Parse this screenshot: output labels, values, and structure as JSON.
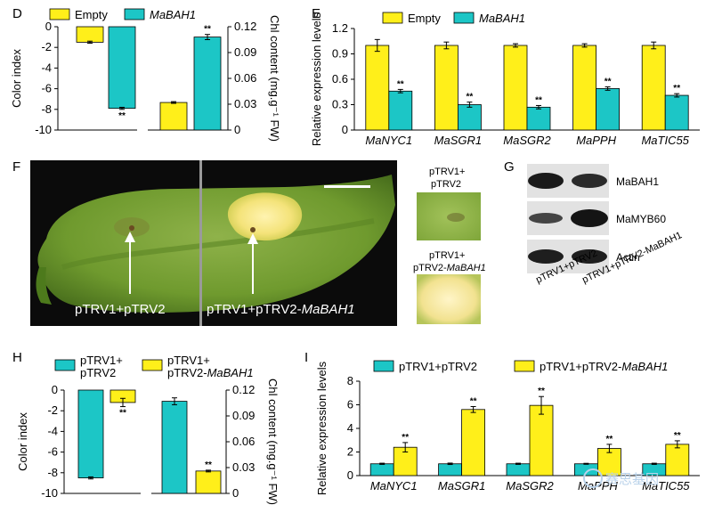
{
  "colors": {
    "empty": "#ffef1a",
    "treatment": "#1cc6c6",
    "ctrl_trv": "#1cc6c6",
    "trv_bah1": "#ffef1a"
  },
  "panel_labels": {
    "d": "D",
    "e": "E",
    "f": "F",
    "g": "G",
    "h": "H",
    "i": "I"
  },
  "photo": {
    "left_label": "pTRV1+pTRV2",
    "right_label_prefix": "pTRV1+pTRV2-",
    "right_label_gene": "MaBAH1",
    "inset_top_line1": "pTRV1+",
    "inset_top_line2": "pTRV2",
    "inset_bottom_line1": "pTRV1+",
    "inset_bottom_line2_prefix": "pTRV2-",
    "inset_bottom_line2_gene": "MaBAH1"
  },
  "western": {
    "bands": [
      "MaBAH1",
      "MaMYB60",
      "Actin"
    ],
    "samples": [
      "pTRV1+pTRV2",
      "pTRV1+pTRV2-MaBAH1"
    ]
  },
  "chart_data": [
    {
      "id": "D",
      "type": "bar",
      "legend": [
        "Empty",
        "MaBAH1"
      ],
      "left": {
        "ylabel": "Color index",
        "ylim": [
          -10,
          0
        ],
        "ticks": [
          "-10",
          "-8",
          "-6",
          "-4",
          "-2",
          "0"
        ],
        "values": [
          -1.5,
          -7.9
        ],
        "errors": [
          0.1,
          0.1
        ],
        "stars": [
          "",
          "**"
        ]
      },
      "right": {
        "ylabel": "Chl content (mg.g⁻¹ FW)",
        "ylim": [
          0,
          0.12
        ],
        "ticks": [
          "0",
          "0.03",
          "0.06",
          "0.09",
          "0.12"
        ],
        "values": [
          0.032,
          0.108
        ],
        "errors": [
          0.001,
          0.003
        ],
        "stars": [
          "",
          "**"
        ]
      }
    },
    {
      "id": "E",
      "type": "bar",
      "legend": [
        "Empty",
        "MaBAH1"
      ],
      "ylabel": "Relative expression levels",
      "ylim": [
        0,
        1.2
      ],
      "ticks": [
        "0",
        "0.3",
        "0.6",
        "0.9",
        "1.2"
      ],
      "categories": [
        "MaNYC1",
        "MaSGR1",
        "MaSGR2",
        "MaPPH",
        "MaTIC55"
      ],
      "series": [
        {
          "name": "Empty",
          "values": [
            1.0,
            1.0,
            1.0,
            1.0,
            1.0
          ],
          "errors": [
            0.07,
            0.04,
            0.02,
            0.02,
            0.04
          ]
        },
        {
          "name": "MaBAH1",
          "values": [
            0.46,
            0.3,
            0.27,
            0.49,
            0.41
          ],
          "errors": [
            0.02,
            0.03,
            0.02,
            0.02,
            0.02
          ],
          "stars": [
            "**",
            "**",
            "**",
            "**",
            "**"
          ]
        }
      ]
    },
    {
      "id": "H",
      "type": "bar",
      "legend": [
        [
          "pTRV1+",
          "pTRV2"
        ],
        [
          "pTRV1+",
          "pTRV2-",
          "MaBAH1"
        ]
      ],
      "left": {
        "ylabel": "Color index",
        "ylim": [
          -10,
          0
        ],
        "ticks": [
          "-10",
          "-8",
          "-6",
          "-4",
          "-2",
          "0"
        ],
        "values": [
          -8.5,
          -1.2
        ],
        "errors": [
          0.1,
          0.4
        ],
        "stars": [
          "",
          "**"
        ]
      },
      "right": {
        "ylabel": "Chl content (mg.g⁻¹ FW)",
        "ylim": [
          0,
          0.12
        ],
        "ticks": [
          "0",
          "0.03",
          "0.06",
          "0.09",
          "0.12"
        ],
        "values": [
          0.107,
          0.026
        ],
        "errors": [
          0.004,
          0.001
        ],
        "stars": [
          "",
          "**"
        ]
      }
    },
    {
      "id": "I",
      "type": "bar",
      "legend": [
        "pTRV1+pTRV2",
        "pTRV1+pTRV2-MaBAH1"
      ],
      "ylabel": "Relative expression levels",
      "ylim": [
        0,
        8
      ],
      "ticks": [
        "0",
        "2",
        "4",
        "6",
        "8"
      ],
      "categories": [
        "MaNYC1",
        "MaSGR1",
        "MaSGR2",
        "MaPPH",
        "MaTIC55"
      ],
      "series": [
        {
          "name": "pTRV1+pTRV2",
          "values": [
            1.0,
            1.0,
            1.0,
            1.0,
            1.0
          ],
          "errors": [
            0.05,
            0.06,
            0.05,
            0.04,
            0.05
          ]
        },
        {
          "name": "pTRV1+pTRV2-MaBAH1",
          "values": [
            2.4,
            5.6,
            5.95,
            2.3,
            2.65
          ],
          "errors": [
            0.4,
            0.25,
            0.75,
            0.35,
            0.3
          ],
          "stars": [
            "**",
            "**",
            "**",
            "**",
            "**"
          ]
        }
      ]
    }
  ],
  "watermark": "赛思基因"
}
